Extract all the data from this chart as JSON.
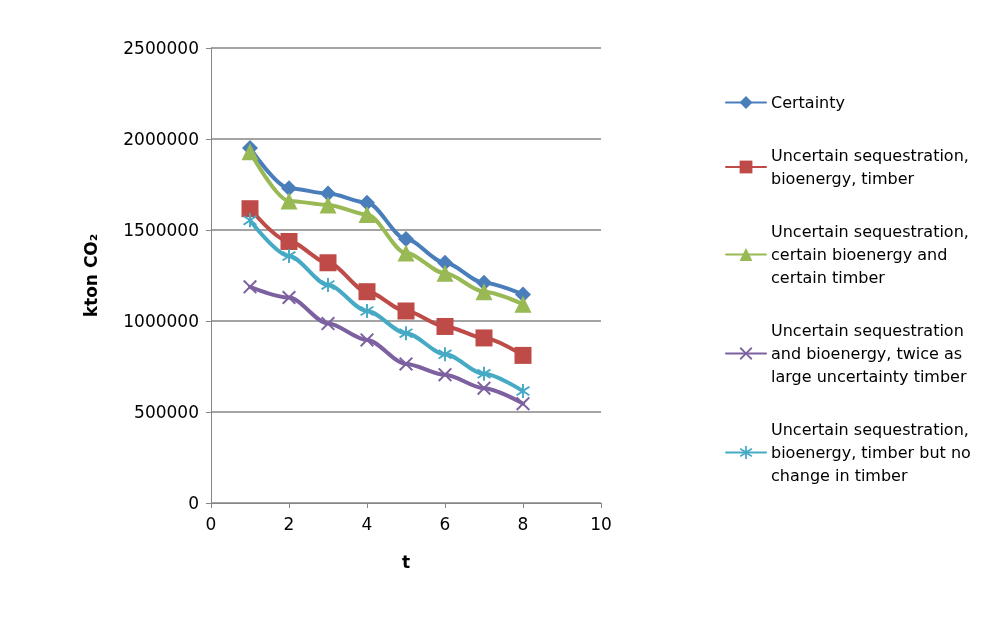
{
  "chart_data": {
    "type": "line",
    "xlabel": "t",
    "ylabel": "kton CO₂",
    "x": [
      1,
      2,
      3,
      4,
      5,
      6,
      7,
      8
    ],
    "xlim": [
      0,
      10
    ],
    "xticks": [
      0,
      2,
      4,
      6,
      8,
      10
    ],
    "ylim": [
      0,
      2500000
    ],
    "yticks": [
      0,
      500000,
      1000000,
      1500000,
      2000000,
      2500000
    ],
    "grid": "y",
    "legend": "right",
    "line_style": "solid",
    "series": [
      {
        "name": "Certainty",
        "color": "#4a7ebb",
        "marker": "diamond",
        "values": [
          1950000,
          1730000,
          1700000,
          1650000,
          1450000,
          1320000,
          1210000,
          1145000
        ]
      },
      {
        "name": "Uncertain sequestration, bioenergy, timber",
        "color": "#be4b48",
        "marker": "square",
        "values": [
          1617000,
          1437000,
          1320000,
          1161000,
          1055000,
          970000,
          907000,
          811000
        ]
      },
      {
        "name": "Uncertain sequestration, certain bioenergy and certain timber",
        "color": "#98b954",
        "marker": "triangle",
        "values": [
          1930000,
          1660000,
          1638000,
          1585000,
          1373000,
          1262000,
          1161000,
          1092000
        ]
      },
      {
        "name": "Uncertain sequestration and bioenergy, twice as large uncertainty timber",
        "color": "#7d60a0",
        "marker": "cross",
        "values": [
          1188000,
          1129000,
          986000,
          896000,
          764000,
          705000,
          631000,
          546000
        ]
      },
      {
        "name": "Uncertain sequestration, bioenergy, timber but no change in timber",
        "color": "#46aac5",
        "marker": "star",
        "values": [
          1553000,
          1357000,
          1198000,
          1055000,
          933000,
          817000,
          710000,
          615000
        ]
      }
    ]
  }
}
